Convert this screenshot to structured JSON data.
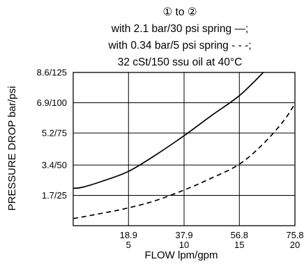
{
  "chart_data": {
    "type": "line",
    "title_lines": [
      "① to ②",
      "with 2.1 bar/30 psi spring —;",
      "with 0.34 bar/5 psi spring - - -;",
      "32 cSt/150 ssu oil at 40°C"
    ],
    "xlabel": "FLOW lpm/gpm",
    "ylabel": "PRESSURE DROP bar/psi",
    "xlim": [
      0,
      75.8
    ],
    "ylim": [
      0,
      8.6
    ],
    "x_ticks": [
      {
        "value": 18.9,
        "label_top": "18.9",
        "label_bottom": "5"
      },
      {
        "value": 37.9,
        "label_top": "37.9",
        "label_bottom": "10"
      },
      {
        "value": 56.8,
        "label_top": "56.8",
        "label_bottom": "15"
      },
      {
        "value": 75.8,
        "label_top": "75.8",
        "label_bottom": "20"
      }
    ],
    "y_ticks": [
      {
        "value": 1.7,
        "label": "1.7/25"
      },
      {
        "value": 3.4,
        "label": "3.4/50"
      },
      {
        "value": 5.2,
        "label": "5.2/75"
      },
      {
        "value": 6.9,
        "label": "6.9/100"
      },
      {
        "value": 8.6,
        "label": "8.6/125"
      }
    ],
    "grid": true,
    "series": [
      {
        "style": "solid",
        "color": "#000000",
        "x": [
          0,
          3,
          10,
          18.9,
          28,
          37.9,
          47,
          56.8,
          65
        ],
        "y": [
          2.1,
          2.15,
          2.5,
          3.05,
          3.95,
          5.05,
          6.15,
          7.3,
          8.6
        ]
      },
      {
        "style": "dashed",
        "color": "#000000",
        "x": [
          0,
          10,
          18.9,
          28,
          37.9,
          47,
          56.8,
          65,
          72,
          75.8
        ],
        "y": [
          0.4,
          0.7,
          1.0,
          1.4,
          2.0,
          2.65,
          3.45,
          4.6,
          5.9,
          6.85
        ]
      }
    ]
  }
}
